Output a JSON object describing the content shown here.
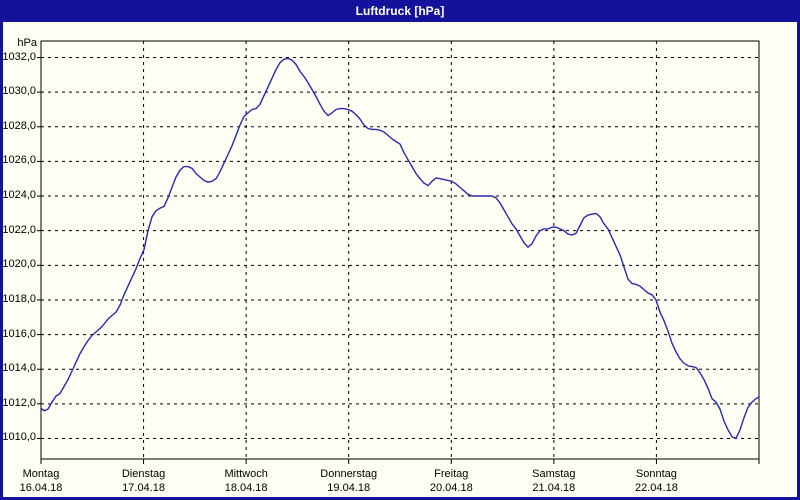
{
  "window": {
    "title": "Luftdruck [hPa]"
  },
  "colors": {
    "title_bar": "#14129B",
    "window_border": "#14129B",
    "background": "#FEFEF4",
    "grid": "#000000",
    "axis": "#000000",
    "text": "#000000",
    "title_text": "#FFFFFF",
    "line": "#2828B4"
  },
  "chart_data": {
    "type": "line",
    "title": "Luftdruck [hPa]",
    "ylabel": "hPa",
    "xlabel": "",
    "ylim": [
      1008.8,
      1033.0
    ],
    "xlim_days": [
      0,
      7
    ],
    "grid": "dashed-black",
    "legend": "none",
    "y_ticks": [
      1032,
      1030,
      1028,
      1026,
      1024,
      1022,
      1020,
      1018,
      1016,
      1014,
      1012,
      1010
    ],
    "y_tick_labels": [
      "1032,0",
      "1030,0",
      "1028,0",
      "1026,0",
      "1024,0",
      "1022,0",
      "1020,0",
      "1018,0",
      "1016,0",
      "1014,0",
      "1012,0",
      "1010,0"
    ],
    "days": [
      {
        "label": "Montag",
        "date": "16.04.18"
      },
      {
        "label": "Dienstag",
        "date": "17.04.18"
      },
      {
        "label": "Mittwoch",
        "date": "18.04.18"
      },
      {
        "label": "Donnerstag",
        "date": "19.04.18"
      },
      {
        "label": "Freitag",
        "date": "20.04.18"
      },
      {
        "label": "Samstag",
        "date": "21.04.18"
      },
      {
        "label": "Sonntag",
        "date": "22.04.18"
      }
    ],
    "series": [
      {
        "name": "Luftdruck",
        "x_days": [
          0.0,
          0.029,
          0.068,
          0.107,
          0.146,
          0.185,
          0.224,
          0.263,
          0.302,
          0.341,
          0.38,
          0.419,
          0.458,
          0.497,
          0.536,
          0.575,
          0.614,
          0.653,
          0.692,
          0.731,
          0.77,
          0.809,
          0.848,
          0.887,
          0.926,
          0.965,
          1.004,
          1.043,
          1.082,
          1.121,
          1.16,
          1.199,
          1.238,
          1.277,
          1.316,
          1.355,
          1.394,
          1.433,
          1.472,
          1.511,
          1.55,
          1.589,
          1.628,
          1.667,
          1.706,
          1.745,
          1.784,
          1.823,
          1.862,
          1.901,
          1.94,
          1.979,
          2.018,
          2.057,
          2.096,
          2.135,
          2.174,
          2.213,
          2.252,
          2.291,
          2.33,
          2.369,
          2.408,
          2.447,
          2.486,
          2.525,
          2.564,
          2.603,
          2.642,
          2.681,
          2.72,
          2.759,
          2.798,
          2.837,
          2.876,
          2.915,
          2.954,
          2.993,
          3.032,
          3.071,
          3.11,
          3.149,
          3.188,
          3.227,
          3.266,
          3.305,
          3.344,
          3.383,
          3.422,
          3.461,
          3.5,
          3.539,
          3.578,
          3.617,
          3.656,
          3.695,
          3.734,
          3.773,
          3.812,
          3.851,
          3.89,
          3.929,
          3.968,
          4.007,
          4.046,
          4.085,
          4.124,
          4.163,
          4.202,
          4.241,
          4.28,
          4.319,
          4.358,
          4.397,
          4.436,
          4.475,
          4.514,
          4.553,
          4.592,
          4.631,
          4.67,
          4.709,
          4.748,
          4.787,
          4.826,
          4.865,
          4.904,
          4.943,
          4.982,
          5.021,
          5.06,
          5.099,
          5.138,
          5.177,
          5.216,
          5.255,
          5.294,
          5.333,
          5.372,
          5.411,
          5.45,
          5.489,
          5.528,
          5.567,
          5.606,
          5.645,
          5.684,
          5.723,
          5.762,
          5.801,
          5.84,
          5.879,
          5.918,
          5.957,
          5.996,
          6.035,
          6.074,
          6.113,
          6.152,
          6.191,
          6.23,
          6.269,
          6.308,
          6.347,
          6.386,
          6.425,
          6.464,
          6.503,
          6.542,
          6.581,
          6.62,
          6.659,
          6.698,
          6.737,
          6.776,
          6.815,
          6.854,
          6.893,
          6.932,
          6.971,
          7.0
        ],
        "values": [
          1011.75,
          1011.6,
          1011.7,
          1012.1,
          1012.45,
          1012.6,
          1013.0,
          1013.4,
          1013.9,
          1014.4,
          1014.9,
          1015.3,
          1015.65,
          1015.95,
          1016.15,
          1016.35,
          1016.6,
          1016.9,
          1017.1,
          1017.3,
          1017.7,
          1018.3,
          1018.8,
          1019.3,
          1019.8,
          1020.4,
          1020.9,
          1022.0,
          1022.8,
          1023.15,
          1023.3,
          1023.4,
          1023.9,
          1024.5,
          1025.1,
          1025.5,
          1025.7,
          1025.7,
          1025.6,
          1025.3,
          1025.1,
          1024.9,
          1024.8,
          1024.85,
          1025.0,
          1025.4,
          1025.9,
          1026.4,
          1026.9,
          1027.5,
          1028.1,
          1028.6,
          1028.8,
          1029.0,
          1029.05,
          1029.3,
          1029.8,
          1030.3,
          1030.8,
          1031.3,
          1031.7,
          1031.9,
          1031.95,
          1031.85,
          1031.6,
          1031.2,
          1030.9,
          1030.55,
          1030.15,
          1029.75,
          1029.3,
          1028.9,
          1028.65,
          1028.8,
          1029.0,
          1029.05,
          1029.05,
          1029.0,
          1028.9,
          1028.7,
          1028.45,
          1028.1,
          1027.9,
          1027.85,
          1027.85,
          1027.8,
          1027.7,
          1027.5,
          1027.3,
          1027.15,
          1027.0,
          1026.5,
          1026.1,
          1025.7,
          1025.3,
          1025.0,
          1024.75,
          1024.6,
          1024.85,
          1025.05,
          1025.0,
          1024.95,
          1024.9,
          1024.85,
          1024.7,
          1024.5,
          1024.3,
          1024.1,
          1024.0,
          1024.0,
          1024.0,
          1024.0,
          1024.0,
          1024.0,
          1023.9,
          1023.6,
          1023.2,
          1022.8,
          1022.4,
          1022.1,
          1021.7,
          1021.3,
          1021.05,
          1021.25,
          1021.7,
          1022.0,
          1022.1,
          1022.1,
          1022.2,
          1022.2,
          1022.1,
          1022.0,
          1021.8,
          1021.75,
          1021.85,
          1022.3,
          1022.75,
          1022.9,
          1022.95,
          1023.0,
          1022.8,
          1022.4,
          1022.1,
          1021.6,
          1021.1,
          1020.6,
          1019.9,
          1019.2,
          1018.95,
          1018.9,
          1018.8,
          1018.6,
          1018.4,
          1018.3,
          1018.0,
          1017.3,
          1016.8,
          1016.2,
          1015.5,
          1015.0,
          1014.6,
          1014.35,
          1014.2,
          1014.15,
          1014.1,
          1013.8,
          1013.4,
          1012.9,
          1012.3,
          1012.1,
          1011.7,
          1011.0,
          1010.5,
          1010.1,
          1010.0,
          1010.5,
          1011.2,
          1011.8,
          1012.1,
          1012.3,
          1012.4
        ]
      }
    ]
  }
}
